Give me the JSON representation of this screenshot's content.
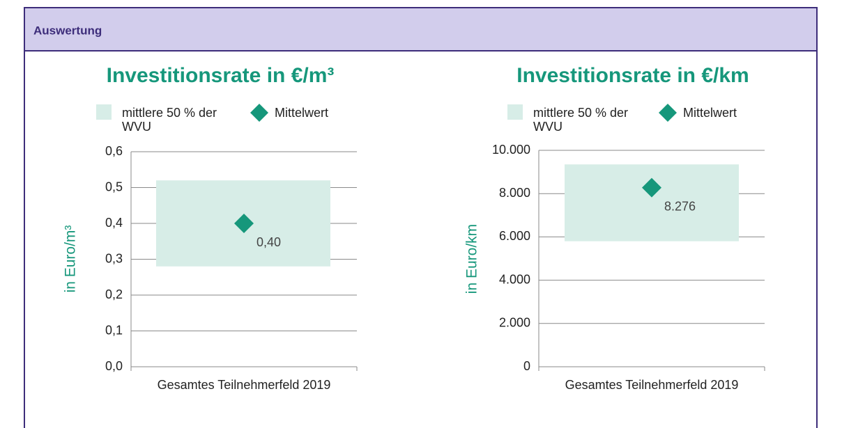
{
  "header": {
    "title": "Auswertung"
  },
  "chart_data": [
    {
      "type": "range",
      "title": "Investitionsrate in €/m³",
      "ylabel": "in Euro/m³",
      "categories": [
        "Gesamtes Teilnehmerfeld 2019"
      ],
      "band": {
        "name": "mittlere 50 % der WVU",
        "color": "#d7ede7",
        "low": [
          0.28
        ],
        "high": [
          0.52
        ]
      },
      "mean": {
        "name": "Mittelwert",
        "color": "#16977b",
        "values": [
          0.4
        ],
        "value_labels": [
          "0,40"
        ]
      },
      "ylim": [
        0,
        0.6
      ],
      "yticks": [
        {
          "value": 0,
          "label": "0,0"
        },
        {
          "value": 0.1,
          "label": "0,1"
        },
        {
          "value": 0.2,
          "label": "0,2"
        },
        {
          "value": 0.3,
          "label": "0,3"
        },
        {
          "value": 0.4,
          "label": "0,4"
        },
        {
          "value": 0.5,
          "label": "0,5"
        },
        {
          "value": 0.6,
          "label": "0,6"
        }
      ],
      "grid": true
    },
    {
      "type": "range",
      "title": "Investitionsrate in €/km",
      "ylabel": "in Euro/km",
      "categories": [
        "Gesamtes Teilnehmerfeld 2019"
      ],
      "band": {
        "name": "mittlere 50 % der WVU",
        "color": "#d7ede7",
        "low": [
          5800
        ],
        "high": [
          9350
        ]
      },
      "mean": {
        "name": "Mittelwert",
        "color": "#16977b",
        "values": [
          8276
        ],
        "value_labels": [
          "8.276"
        ]
      },
      "ylim": [
        0,
        10000
      ],
      "yticks": [
        0,
        {
          "value": 2000,
          "label": "2.000"
        },
        {
          "value": 4000,
          "label": "4.000"
        },
        {
          "value": 6000,
          "label": "6.000"
        },
        {
          "value": 8000,
          "label": "8.000"
        },
        {
          "value": 10000,
          "label": "10.000"
        }
      ],
      "grid": true
    }
  ]
}
